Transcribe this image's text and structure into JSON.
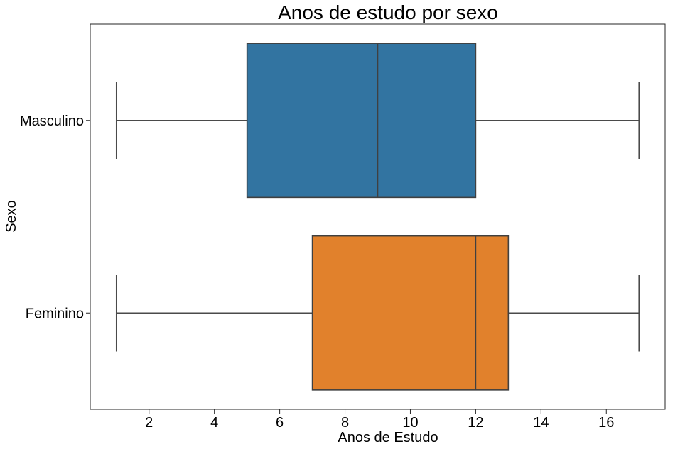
{
  "chart_data": {
    "type": "boxplot",
    "orientation": "horizontal",
    "title": "Anos de estudo por sexo",
    "xlabel": "Anos de Estudo",
    "ylabel": "Sexo",
    "xlim": [
      0.2,
      17.8
    ],
    "xticks": [
      2,
      4,
      6,
      8,
      10,
      12,
      14,
      16
    ],
    "grid": false,
    "categories": [
      "Masculino",
      "Feminino"
    ],
    "series": [
      {
        "category": "Masculino",
        "min": 1,
        "q1": 5,
        "median": 9,
        "q3": 12,
        "max": 17,
        "color": "#3274a1"
      },
      {
        "category": "Feminino",
        "min": 1,
        "q1": 7,
        "median": 12,
        "q3": 13,
        "max": 17,
        "color": "#e1812c"
      }
    ]
  }
}
